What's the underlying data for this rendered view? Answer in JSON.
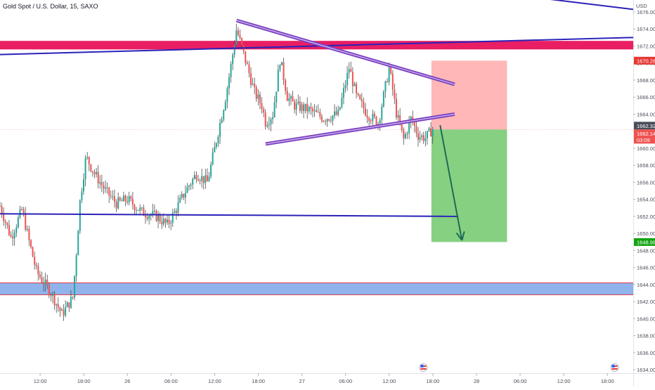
{
  "chart_data": {
    "type": "candlestick",
    "title": "Gold Spot / U.S. Dollar, 15, SAXO",
    "currency": "USD",
    "y_ticks": [
      "1676.00",
      "1674.00",
      "1672.00",
      "1670.00",
      "1668.00",
      "1666.00",
      "1664.00",
      "1662.00",
      "1660.00",
      "1658.00",
      "1656.00",
      "1654.00",
      "1652.00",
      "1650.00",
      "1648.00",
      "1646.00",
      "1644.00",
      "1642.00",
      "1640.00",
      "1638.00",
      "1636.00",
      "1634.00"
    ],
    "ylim": [
      1633.6,
      1677.4
    ],
    "x_ticks": [
      {
        "label": "12:00",
        "t": 0
      },
      {
        "label": "18:00",
        "t": 6
      },
      {
        "label": "26",
        "t": 12
      },
      {
        "label": "06:00",
        "t": 18
      },
      {
        "label": "12:00",
        "t": 24
      },
      {
        "label": "18:00",
        "t": 30
      },
      {
        "label": "27",
        "t": 36
      },
      {
        "label": "06:00",
        "t": 42
      },
      {
        "label": "12:00",
        "t": 48
      },
      {
        "label": "18:00",
        "t": 54
      },
      {
        "label": "28",
        "t": 60
      },
      {
        "label": "06:00",
        "t": 66
      },
      {
        "label": "12:00",
        "t": 72
      },
      {
        "label": "18:00",
        "t": 78
      }
    ],
    "xlim": [
      -5.52,
      81.55
    ],
    "price_badges": {
      "stop": "1670.28",
      "last": "1662.32",
      "bid": "1662.14",
      "countdown": "03:09",
      "target": "1648.99"
    },
    "colors": {
      "up": "#26a69a",
      "down": "#ef5350",
      "wick": "#4d4d4d",
      "resistance_zone": "#e91e63",
      "support_zone": "#8fb3ea",
      "trend_line": "#2b22b8",
      "triangle": "#7b3fbf",
      "stop_zone": "#ffb3b3",
      "target_zone": "#7fce7b",
      "arrow": "#1d6b55",
      "target_badge": "#12a312",
      "stop_badge": "#e53935",
      "last_badge": "#4a4e59"
    },
    "anchors": [
      [
        -5.52,
        1653.2
      ],
      [
        -4.0,
        1649.5
      ],
      [
        -2.5,
        1652.8
      ],
      [
        -1.5,
        1649.0
      ],
      [
        -0.5,
        1645.5
      ],
      [
        1.5,
        1643.0
      ],
      [
        3.0,
        1640.5
      ],
      [
        4.5,
        1642.5
      ],
      [
        5.0,
        1648.0
      ],
      [
        5.5,
        1654.0
      ],
      [
        6.3,
        1659.0
      ],
      [
        7.5,
        1657.0
      ],
      [
        9.0,
        1655.0
      ],
      [
        10.5,
        1653.5
      ],
      [
        12.0,
        1654.0
      ],
      [
        14.0,
        1652.5
      ],
      [
        16.0,
        1652.0
      ],
      [
        17.5,
        1651.0
      ],
      [
        18.5,
        1652.5
      ],
      [
        20.0,
        1655.0
      ],
      [
        21.5,
        1657.0
      ],
      [
        23.0,
        1656.0
      ],
      [
        24.5,
        1662.0
      ],
      [
        25.5,
        1666.0
      ],
      [
        26.3,
        1670.0
      ],
      [
        27.0,
        1674.0
      ],
      [
        28.0,
        1671.0
      ],
      [
        29.5,
        1666.5
      ],
      [
        30.5,
        1665.0
      ],
      [
        31.0,
        1663.0
      ],
      [
        32.0,
        1664.0
      ],
      [
        33.0,
        1670.5
      ],
      [
        34.0,
        1666.0
      ],
      [
        35.0,
        1665.0
      ],
      [
        37.0,
        1664.5
      ],
      [
        39.0,
        1663.5
      ],
      [
        41.0,
        1664.0
      ],
      [
        42.5,
        1669.5
      ],
      [
        43.5,
        1666.0
      ],
      [
        45.0,
        1664.0
      ],
      [
        46.5,
        1663.0
      ],
      [
        48.0,
        1669.5
      ],
      [
        49.0,
        1664.0
      ],
      [
        50.0,
        1661.0
      ],
      [
        51.0,
        1663.5
      ],
      [
        52.0,
        1661.5
      ],
      [
        53.0,
        1661.2
      ],
      [
        54.0,
        1662.32
      ]
    ],
    "lines": [
      {
        "name": "descending-line-top-right",
        "x1": 60.3,
        "y1": 1678.5,
        "x2": 81.55,
        "y2": 1676.3
      },
      {
        "name": "rising-trend-line",
        "x1": -5.52,
        "y1": 1671.0,
        "x2": 81.55,
        "y2": 1673.0
      },
      {
        "name": "horizontal-support-line",
        "x1": -5.52,
        "y1": 1652.3,
        "x2": 57.5,
        "y2": 1652.0
      },
      {
        "name": "triangle-upper-line",
        "x1": 27.0,
        "y1": 1675.0,
        "x2": 57.0,
        "y2": 1667.5
      },
      {
        "name": "triangle-lower-line",
        "x1": 31.0,
        "y1": 1660.5,
        "x2": 57.0,
        "y2": 1664.0
      }
    ],
    "zones": [
      {
        "name": "resistance-zone",
        "y_low": 1671.6,
        "y_high": 1672.6,
        "x1": -5.52,
        "x2": 81.55
      },
      {
        "name": "support-zone",
        "y_low": 1642.8,
        "y_high": 1644.2,
        "x1": -5.52,
        "x2": 81.55
      },
      {
        "name": "stop-zone",
        "y_low": 1662.2,
        "y_high": 1670.28,
        "x1": 53.8,
        "x2": 64.2
      },
      {
        "name": "target-zone",
        "y_low": 1648.99,
        "y_high": 1662.2,
        "x1": 53.8,
        "x2": 64.2
      }
    ],
    "arrow": {
      "x1": 55.0,
      "y1": 1662.7,
      "x2": 58.0,
      "y2": 1649.2
    },
    "event_markers": [
      52.7,
      79.0
    ]
  }
}
